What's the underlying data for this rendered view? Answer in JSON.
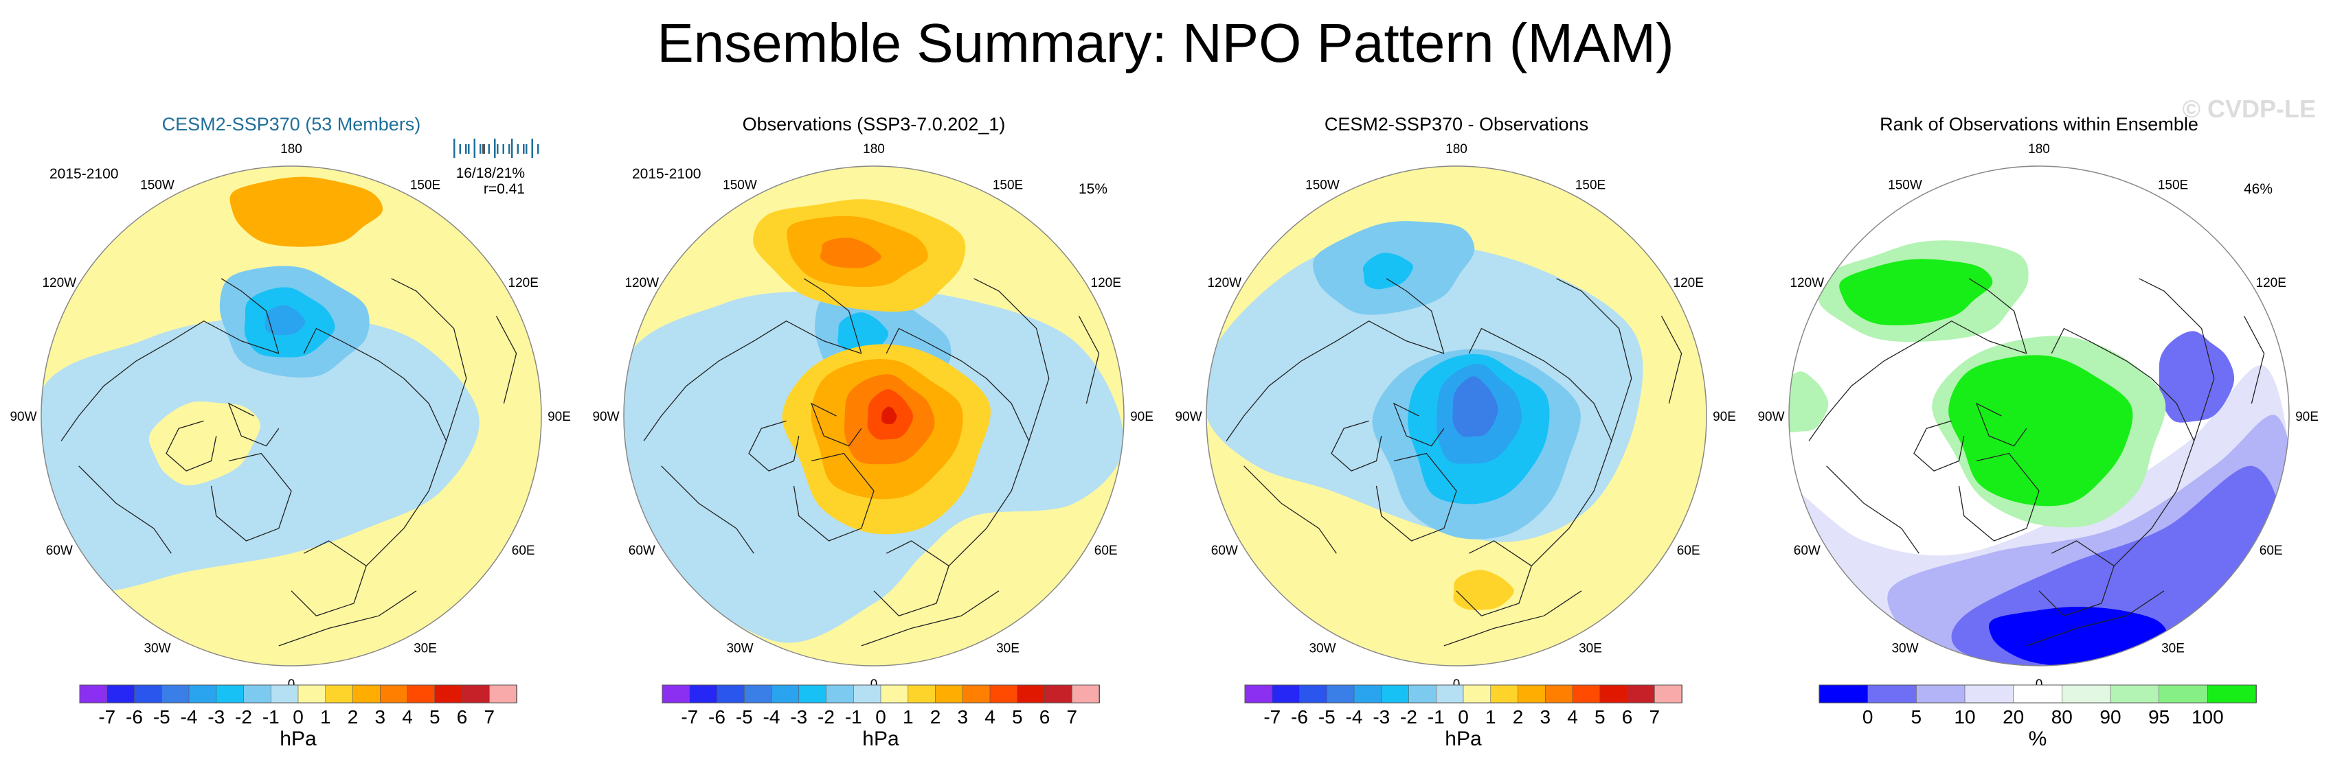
{
  "figure": {
    "title": "Ensemble Summary: NPO Pattern (MAM)",
    "watermark": "© CVDP-LE"
  },
  "colors": {
    "land_outline": "#222222",
    "title_blue": "#1f6f9a",
    "hpa_scale": [
      "#8b2ff0",
      "#2626f5",
      "#2a56ee",
      "#3a7ee8",
      "#2aa4ef",
      "#18c1f5",
      "#7ccaf0",
      "#b5dff2",
      "#fdf7a0",
      "#ffd42a",
      "#ffad00",
      "#ff7f00",
      "#fe4b00",
      "#e11800",
      "#c62128",
      "#f8a9a9"
    ],
    "pct_scale": [
      "#0000ff",
      "#6f6ff5",
      "#b3b3f7",
      "#e2e2fb",
      "#ffffff",
      "#e2f8e2",
      "#b3f3b3",
      "#86f086",
      "#17ee17"
    ]
  },
  "chart_data": [
    {
      "type": "polar_contour_map",
      "title": "CESM2-SSP370 (53 Members)",
      "period_label": "2015-2100",
      "stats": {
        "bar_ticks": 18,
        "ranges_label": "16/18/21%",
        "corr_label": "r=0.41"
      },
      "lon_labels": [
        "180",
        "150E",
        "120E",
        "90E",
        "60E",
        "30E",
        "0",
        "30W",
        "60W",
        "90W",
        "120W",
        "150W"
      ],
      "colorbar": {
        "levels": [
          "-7",
          "-6",
          "-5",
          "-4",
          "-3",
          "-2",
          "-1",
          "0",
          "1",
          "2",
          "3",
          "4",
          "5",
          "6",
          "7"
        ],
        "units": "hPa"
      },
      "features": [
        {
          "kind": "background",
          "value": 0.5
        },
        {
          "kind": "negative band",
          "value": -0.5,
          "region": "central Arctic, Siberia, North America"
        },
        {
          "kind": "low",
          "value": -3,
          "region": "Chukotka / Bering",
          "peak": -3.5
        },
        {
          "kind": "high",
          "value": 2.5,
          "region": "central North Pacific"
        },
        {
          "kind": "high",
          "value": 0.5,
          "region": "Greenland"
        }
      ]
    },
    {
      "type": "polar_contour_map",
      "title": "Observations (SSP3-7.0.202_1)",
      "period_label": "2015-2100",
      "explained_variance": "15%",
      "lon_labels": [
        "180",
        "150E",
        "120E",
        "90E",
        "60E",
        "30E",
        "0",
        "30W",
        "60W",
        "90W",
        "120W",
        "150W"
      ],
      "colorbar": {
        "levels": [
          "-7",
          "-6",
          "-5",
          "-4",
          "-3",
          "-2",
          "-1",
          "0",
          "1",
          "2",
          "3",
          "4",
          "5",
          "6",
          "7"
        ],
        "units": "hPa"
      },
      "features": [
        {
          "kind": "background",
          "value": 0.5
        },
        {
          "kind": "negative band",
          "value": -0.5,
          "region": "mid-latitude ring"
        },
        {
          "kind": "low",
          "value": -3,
          "region": "Chukotka / Bering"
        },
        {
          "kind": "high",
          "value": 4.5,
          "region": "central North Pacific",
          "peak": 4
        },
        {
          "kind": "high",
          "value": 5.5,
          "region": "Arctic Ocean",
          "peak": 5.5
        }
      ]
    },
    {
      "type": "polar_contour_map",
      "title": "CESM2-SSP370 - Observations",
      "lon_labels": [
        "180",
        "150E",
        "120E",
        "90E",
        "60E",
        "30E",
        "0",
        "30W",
        "60W",
        "90W",
        "120W",
        "150W"
      ],
      "colorbar": {
        "levels": [
          "-7",
          "-6",
          "-5",
          "-4",
          "-3",
          "-2",
          "-1",
          "0",
          "1",
          "2",
          "3",
          "4",
          "5",
          "6",
          "7"
        ],
        "units": "hPa"
      },
      "features": [
        {
          "kind": "background",
          "value": 0.5
        },
        {
          "kind": "negative band",
          "value": -0.5,
          "region": "North Pacific & central Arctic"
        },
        {
          "kind": "low",
          "value": -3,
          "region": "North Pacific"
        },
        {
          "kind": "low",
          "value": -5,
          "region": "Arctic Ocean",
          "peak": -5
        },
        {
          "kind": "high",
          "value": 1.5,
          "region": "Mediterranean"
        }
      ]
    },
    {
      "type": "polar_categorical_map",
      "title": "Rank of Observations within Ensemble",
      "explained_variance": "46%",
      "lon_labels": [
        "180",
        "150E",
        "120E",
        "90E",
        "60E",
        "30E",
        "0",
        "30W",
        "60W",
        "90W",
        "120W",
        "150W"
      ],
      "colorbar": {
        "levels": [
          "0",
          "5",
          "10",
          "20",
          "80",
          "90",
          "95",
          "100"
        ],
        "units": "%"
      },
      "features": [
        {
          "kind": "rank",
          "range": "95-100",
          "region": "Canada"
        },
        {
          "kind": "rank",
          "range": "95-100",
          "region": "Arctic / Greenland"
        },
        {
          "kind": "rank",
          "range": "0-10",
          "region": "Eurasia"
        },
        {
          "kind": "rank",
          "range": "0-10",
          "region": "western Siberia"
        }
      ]
    }
  ]
}
